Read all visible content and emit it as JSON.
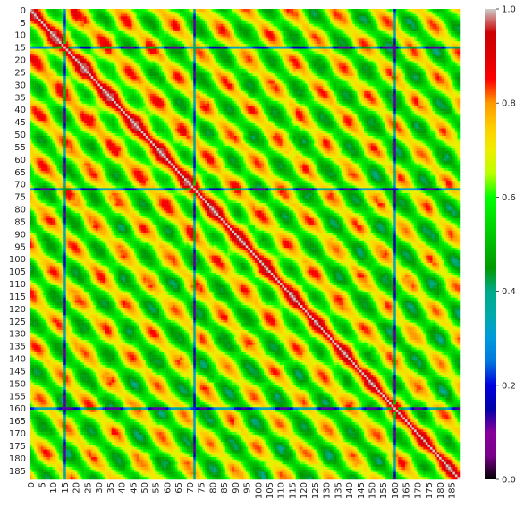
{
  "chart_data": {
    "type": "heatmap",
    "title": "",
    "xlabel": "",
    "ylabel": "",
    "n": 189,
    "x_tick_labels": [
      "0",
      "5",
      "10",
      "15",
      "20",
      "25",
      "30",
      "35",
      "40",
      "45",
      "50",
      "55",
      "60",
      "65",
      "70",
      "75",
      "80",
      "85",
      "90",
      "95",
      "100",
      "105",
      "110",
      "115",
      "120",
      "125",
      "130",
      "135",
      "140",
      "145",
      "150",
      "155",
      "160",
      "165",
      "170",
      "175",
      "180",
      "185"
    ],
    "y_tick_labels": [
      "0",
      "5",
      "10",
      "15",
      "20",
      "25",
      "30",
      "35",
      "40",
      "45",
      "50",
      "55",
      "60",
      "65",
      "70",
      "75",
      "80",
      "85",
      "90",
      "95",
      "100",
      "105",
      "110",
      "115",
      "120",
      "125",
      "130",
      "135",
      "140",
      "145",
      "150",
      "155",
      "160",
      "165",
      "170",
      "175",
      "180",
      "185"
    ],
    "colorbar": {
      "range": [
        0.0,
        1.0
      ],
      "tick_labels": [
        "0.0",
        "0.2",
        "0.4",
        "0.6",
        "0.8",
        "1.0"
      ],
      "colormap": "nipy_spectral"
    },
    "diagonal_value": 1.0,
    "low_value_indices": [
      15,
      72,
      160
    ],
    "typical_offdiagonal_range": [
      0.5,
      0.9
    ]
  }
}
